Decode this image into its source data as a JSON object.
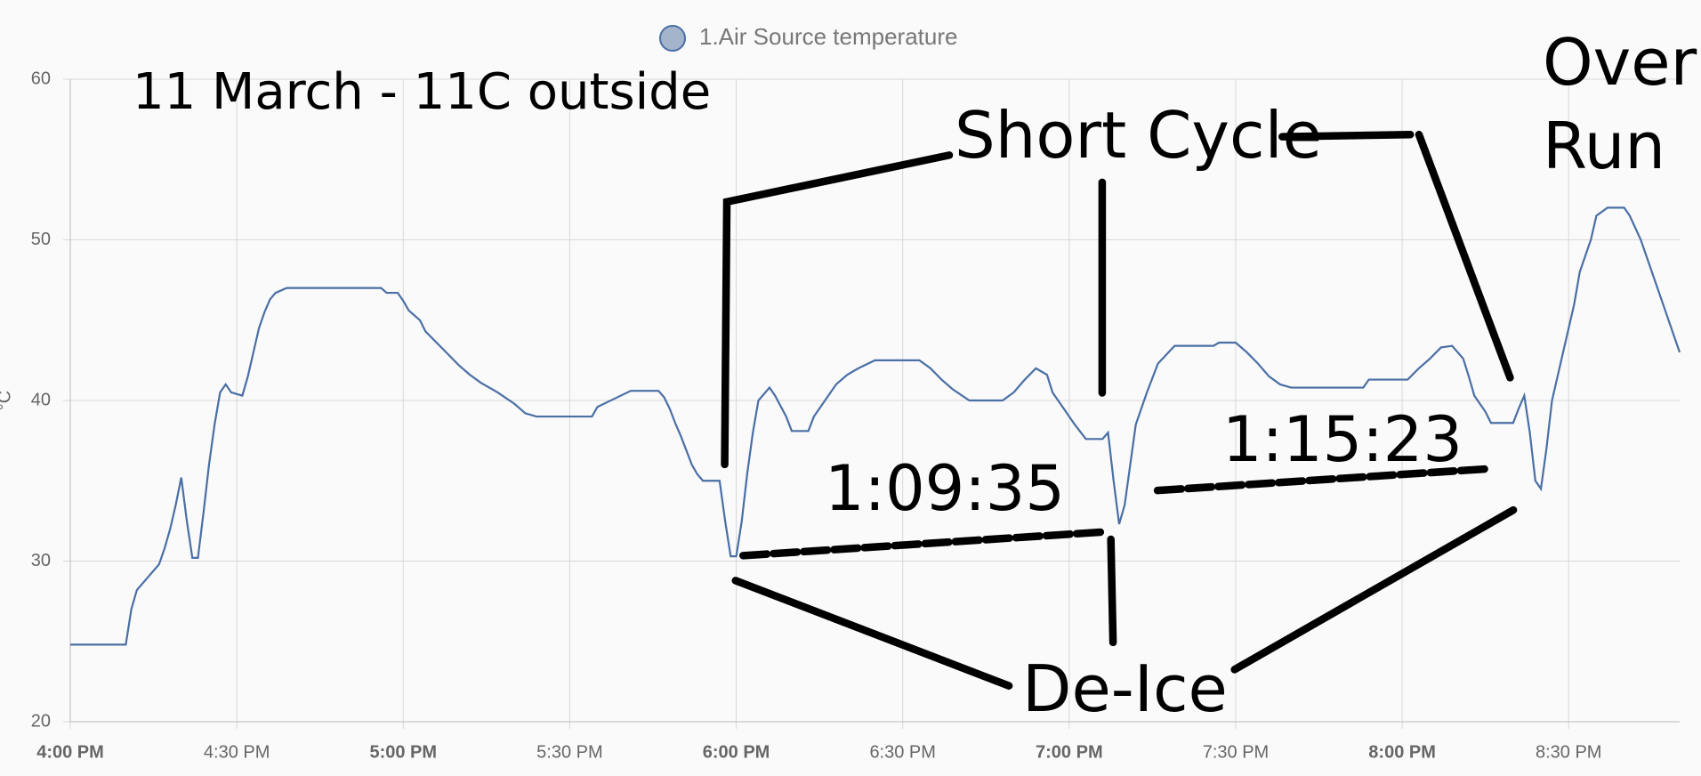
{
  "chart_data": {
    "type": "line",
    "y_label": "°C",
    "annotations": [
      "11 March - 11C outside",
      "Short Cycle",
      "Over",
      "Run",
      "1:09:35",
      "1:15:23",
      "De-Ice"
    ],
    "x": [
      "4:00 PM",
      "4:10 PM",
      "4:11 PM",
      "4:12 PM",
      "4:14 PM",
      "4:16 PM",
      "4:17 PM",
      "4:18 PM",
      "4:19 PM",
      "4:20 PM",
      "4:21 PM",
      "4:22 PM",
      "4:23 PM",
      "4:24 PM",
      "4:25 PM",
      "4:26 PM",
      "4:27 PM",
      "4:28 PM",
      "4:29 PM",
      "4:31 PM",
      "4:32 PM",
      "4:33 PM",
      "4:34 PM",
      "4:35 PM",
      "4:36 PM",
      "4:37 PM",
      "4:39 PM",
      "4:56 PM",
      "4:57 PM",
      "4:59 PM",
      "5:00 PM",
      "5:01 PM",
      "5:03 PM",
      "5:04 PM",
      "5:06 PM",
      "5:08 PM",
      "5:10 PM",
      "5:12 PM",
      "5:14 PM",
      "5:17 PM",
      "5:20 PM",
      "5:22 PM",
      "5:24 PM",
      "5:34 PM",
      "5:35 PM",
      "5:38 PM",
      "5:41 PM",
      "5:46 PM",
      "5:47 PM",
      "5:48 PM",
      "5:49 PM",
      "5:50 PM",
      "5:51 PM",
      "5:52 PM",
      "5:53 PM",
      "5:54 PM",
      "5:57 PM",
      "5:58 PM",
      "5:59 PM",
      "6:00 PM",
      "6:01 PM",
      "6:02 PM",
      "6:03 PM",
      "6:04 PM",
      "6:06 PM",
      "6:07 PM",
      "6:09 PM",
      "6:10 PM",
      "6:13 PM",
      "6:14 PM",
      "6:16 PM",
      "6:18 PM",
      "6:20 PM",
      "6:22 PM",
      "6:25 PM",
      "6:33 PM",
      "6:35 PM",
      "6:37 PM",
      "6:39 PM",
      "6:42 PM",
      "6:48 PM",
      "6:50 PM",
      "6:52 PM",
      "6:54 PM",
      "6:56 PM",
      "6:57 PM",
      "6:59 PM",
      "7:01 PM",
      "7:03 PM",
      "7:06 PM",
      "7:07 PM",
      "7:08 PM",
      "7:09 PM",
      "7:10 PM",
      "7:11 PM",
      "7:12 PM",
      "7:14 PM",
      "7:16 PM",
      "7:19 PM",
      "7:26 PM",
      "7:27 PM",
      "7:30 PM",
      "7:32 PM",
      "7:34 PM",
      "7:36 PM",
      "7:38 PM",
      "7:40 PM",
      "7:53 PM",
      "7:54 PM",
      "8:01 PM",
      "8:03 PM",
      "8:05 PM",
      "8:07 PM",
      "8:09 PM",
      "8:11 PM",
      "8:12 PM",
      "8:13 PM",
      "8:15 PM",
      "8:16 PM",
      "8:20 PM",
      "8:21 PM",
      "8:22 PM",
      "8:23 PM",
      "8:24 PM",
      "8:25 PM",
      "8:26 PM",
      "8:27 PM",
      "8:29 PM",
      "8:31 PM",
      "8:32 PM",
      "8:34 PM",
      "8:35 PM",
      "8:37 PM",
      "8:40 PM",
      "8:41 PM",
      "8:43 PM",
      "8:45 PM",
      "8:47 PM",
      "8:50 PM"
    ],
    "series": [
      {
        "name": "1.Air Source temperature",
        "color": "#4a6fa5",
        "marker_fill": "#a3b4cb",
        "values": [
          24.8,
          24.8,
          27,
          28.2,
          29,
          29.8,
          30.8,
          32,
          33.5,
          35.2,
          32.5,
          30.2,
          30.2,
          33,
          36,
          38.5,
          40.5,
          41,
          40.5,
          40.3,
          41.5,
          43,
          44.5,
          45.5,
          46.3,
          46.7,
          47,
          47,
          46.7,
          46.7,
          46.2,
          45.6,
          45,
          44.3,
          43.6,
          42.9,
          42.2,
          41.6,
          41.1,
          40.5,
          39.8,
          39.2,
          39,
          39,
          39.6,
          40.1,
          40.6,
          40.6,
          40.2,
          39.5,
          38.6,
          37.8,
          36.9,
          36,
          35.4,
          35,
          35,
          32.5,
          30.3,
          30.3,
          32.5,
          35.5,
          38,
          40,
          40.8,
          40.3,
          39,
          38.1,
          38.1,
          39,
          40,
          41,
          41.6,
          42,
          42.5,
          42.5,
          42,
          41.3,
          40.7,
          40,
          40,
          40.5,
          41.3,
          42,
          41.6,
          40.5,
          39.5,
          38.5,
          37.6,
          37.6,
          38,
          35,
          32.3,
          33.5,
          36,
          38.5,
          40.5,
          42.3,
          43.4,
          43.4,
          43.6,
          43.6,
          43,
          42.3,
          41.5,
          41,
          40.8,
          40.8,
          41.3,
          41.3,
          42,
          42.6,
          43.3,
          43.4,
          42.6,
          41.5,
          40.3,
          39.3,
          38.6,
          38.6,
          39.5,
          40.3,
          38,
          35,
          34.5,
          37,
          40,
          43,
          46,
          48,
          50,
          51.5,
          52,
          52,
          51.5,
          50,
          48,
          46,
          43
        ]
      }
    ],
    "xlim": [
      "4:00 PM",
      "8:50 PM"
    ],
    "xticks": [
      "4:00 PM",
      "4:30 PM",
      "5:00 PM",
      "5:30 PM",
      "6:00 PM",
      "6:30 PM",
      "7:00 PM",
      "7:30 PM",
      "8:00 PM",
      "8:30 PM"
    ],
    "ylim": [
      20,
      60
    ],
    "yticks": [
      20,
      30,
      40,
      50,
      60
    ],
    "grid": true
  }
}
